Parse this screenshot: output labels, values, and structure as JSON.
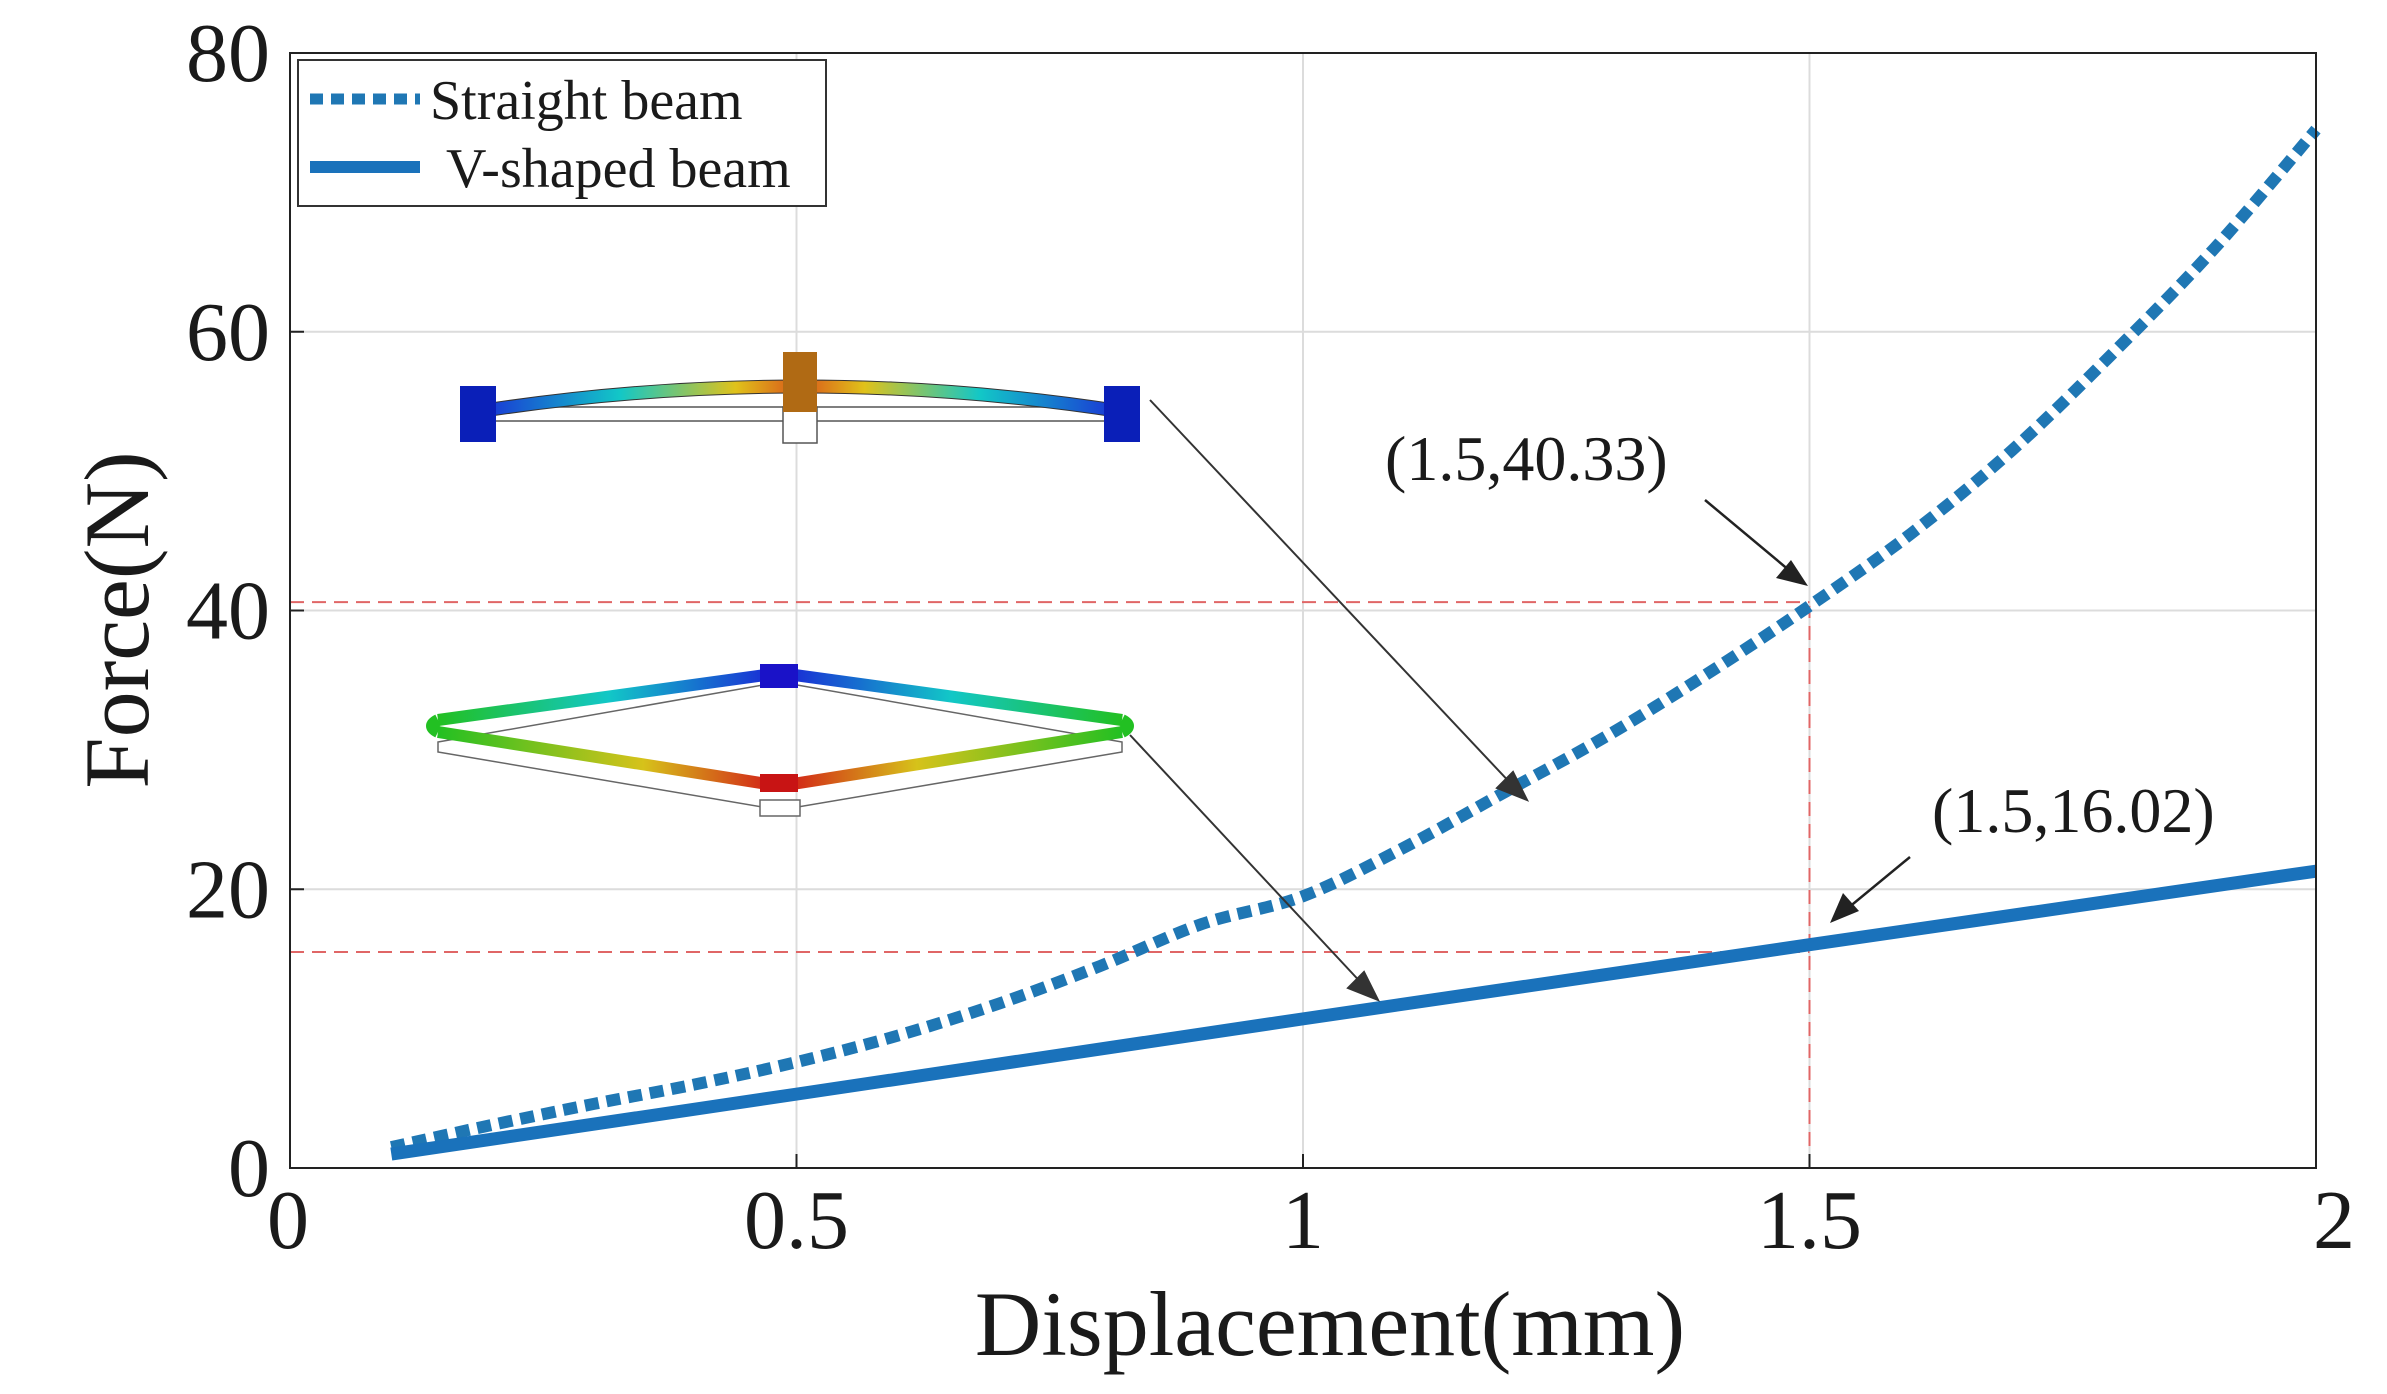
{
  "chart_data": {
    "type": "line",
    "title": "",
    "xlabel": "Displacement(mm)",
    "ylabel": "Force(N)",
    "xlim": [
      0,
      2
    ],
    "ylim": [
      0,
      80
    ],
    "grid": true,
    "x_ticks": [
      0,
      0.5,
      1,
      1.5,
      2
    ],
    "x_tick_labels": [
      "0",
      "0.5",
      "1",
      "1.5",
      "2"
    ],
    "y_ticks": [
      0,
      20,
      40,
      60,
      80
    ],
    "y_tick_labels": [
      "0",
      "20",
      "40",
      "60",
      "80"
    ],
    "legend": {
      "position": "top-left"
    },
    "series": [
      {
        "name": "Straight beam",
        "style": "dotted",
        "color": "#1f77b4",
        "x": [
          0.1,
          0.2,
          0.3,
          0.4,
          0.5,
          0.6,
          0.7,
          0.8,
          0.9,
          1.0,
          1.1,
          1.2,
          1.3,
          1.4,
          1.5,
          1.6,
          1.7,
          1.8,
          1.9,
          2.0
        ],
        "y": [
          1.5,
          3.1,
          4.6,
          6.0,
          7.6,
          9.5,
          11.8,
          14.5,
          17.5,
          19.5,
          23.0,
          27.0,
          31.0,
          35.5,
          40.33,
          45.5,
          51.5,
          58.5,
          66.0,
          74.5
        ]
      },
      {
        "name": "V-shaped beam",
        "style": "solid",
        "color": "#1a72bb",
        "x": [
          0.1,
          0.5,
          1.0,
          1.5,
          2.0
        ],
        "y": [
          1.0,
          5.3,
          10.7,
          16.02,
          21.3
        ]
      }
    ],
    "reference_lines": [
      {
        "type": "h",
        "y": 40.6,
        "x_from": 0,
        "x_to": 1.5
      },
      {
        "type": "h",
        "y": 15.5,
        "x_from": 0,
        "x_to": 1.5
      },
      {
        "type": "v",
        "x": 1.5,
        "y_from": 0,
        "y_to": 40.33
      }
    ],
    "annotations": [
      {
        "text": "(1.5,40.33)",
        "x": 1.5,
        "y": 40.33
      },
      {
        "text": "(1.5,16.02)",
        "x": 1.5,
        "y": 16.02
      }
    ]
  }
}
